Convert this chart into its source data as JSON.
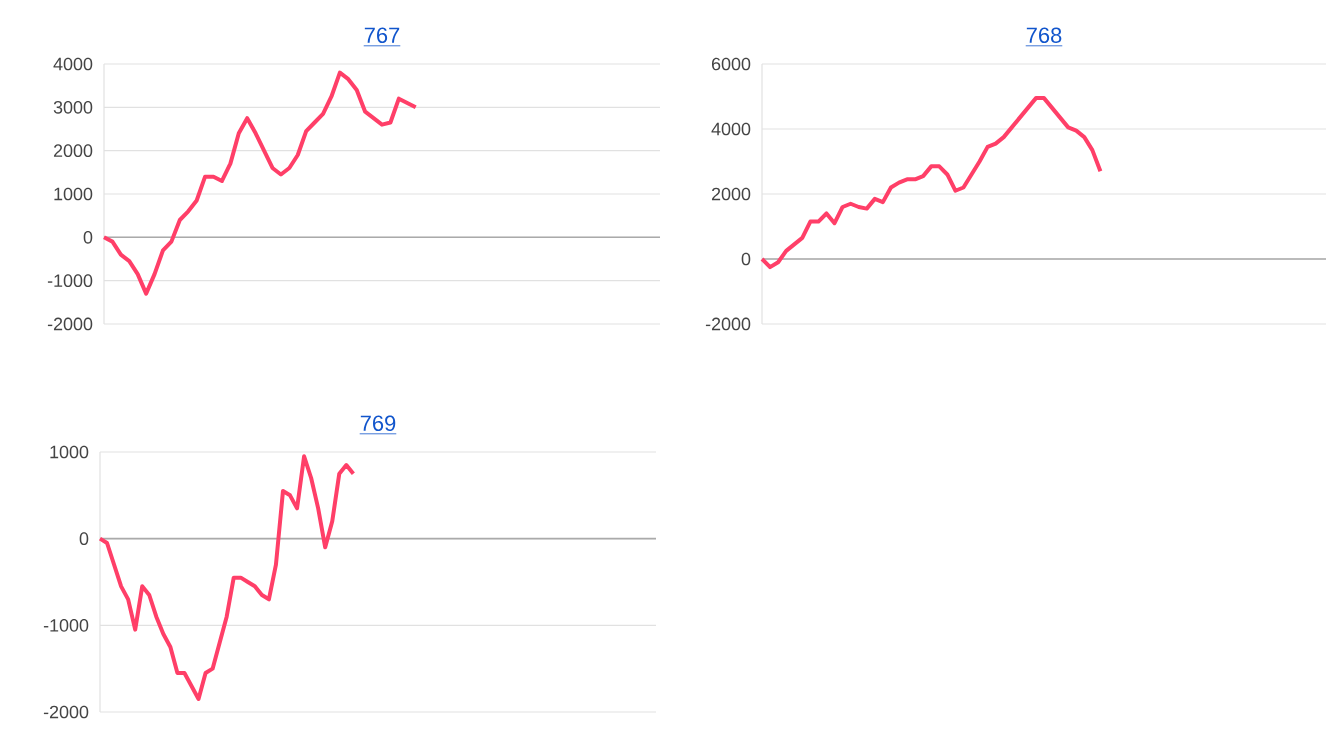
{
  "chart_data": [
    {
      "type": "line",
      "title": "767",
      "categories": [
        null,
        null,
        null,
        null,
        null,
        null,
        null,
        null,
        null,
        null,
        null,
        null,
        null,
        null,
        null,
        null,
        null,
        null,
        null,
        null,
        null,
        null,
        null,
        null,
        null,
        null,
        null,
        null,
        null,
        null,
        null,
        null,
        null,
        null,
        null,
        null,
        null,
        null,
        null,
        null,
        null,
        null,
        null,
        null,
        null,
        null,
        null,
        null,
        null,
        null,
        null,
        null,
        null,
        null,
        null,
        null,
        null,
        null,
        null,
        null,
        null,
        null,
        null,
        null,
        null,
        null,
        null
      ],
      "series": [
        {
          "color": "#ff3f68",
          "values": [
            0,
            -100,
            -400,
            -550,
            -850,
            -1300,
            -850,
            -300,
            -100,
            400,
            600,
            850,
            1400,
            1400,
            1300,
            1700,
            2400,
            2750,
            2400,
            2000,
            1600,
            1450,
            1600,
            1900,
            2450,
            2650,
            2850,
            3250,
            3800,
            3650,
            3400,
            2900,
            2750,
            2600,
            2650,
            3200,
            3100,
            3000,
            null,
            null,
            null,
            null,
            null,
            null,
            null,
            null,
            null,
            null,
            null,
            null,
            null,
            null,
            null,
            null,
            null,
            null,
            null,
            null,
            null,
            null,
            null,
            null,
            null,
            null,
            null,
            null,
            null
          ]
        }
      ],
      "ylim": [
        -2000,
        4000
      ],
      "yticks": [
        -2000,
        -1000,
        0,
        1000,
        2000,
        3000,
        4000
      ],
      "grid": "y",
      "tick_labels": "y",
      "ref_lines": [
        {
          "axis": "y",
          "value": 0,
          "color": "#aaaaaa"
        }
      ]
    },
    {
      "type": "line",
      "title": "768",
      "categories": [
        null,
        null,
        null,
        null,
        null,
        null,
        null,
        null,
        null,
        null,
        null,
        null,
        null,
        null,
        null,
        null,
        null,
        null,
        null,
        null,
        null,
        null,
        null,
        null,
        null,
        null,
        null,
        null,
        null,
        null,
        null,
        null,
        null,
        null,
        null,
        null,
        null,
        null,
        null,
        null,
        null,
        null,
        null,
        null,
        null,
        null,
        null,
        null,
        null,
        null,
        null,
        null,
        null,
        null,
        null,
        null,
        null,
        null,
        null,
        null,
        null,
        null,
        null,
        null,
        null,
        null,
        null,
        null,
        null,
        null,
        null
      ],
      "series": [
        {
          "color": "#ff3f68",
          "values": [
            0,
            -250,
            -100,
            250,
            450,
            650,
            1150,
            1150,
            1400,
            1100,
            1600,
            1700,
            1600,
            1550,
            1850,
            1750,
            2200,
            2350,
            2450,
            2450,
            2550,
            2850,
            2850,
            2600,
            2100,
            2200,
            2600,
            3000,
            3450,
            3550,
            3750,
            4050,
            4350,
            4650,
            4950,
            4950,
            4650,
            4350,
            4050,
            3950,
            3750,
            3350,
            2700,
            null,
            null,
            null,
            null,
            null,
            null,
            null,
            null,
            null,
            null,
            null,
            null,
            null,
            null,
            null,
            null,
            null,
            null,
            null,
            null,
            null,
            null,
            null,
            null,
            null,
            null,
            null,
            null
          ]
        }
      ],
      "ylim": [
        -2000,
        6000
      ],
      "yticks": [
        -2000,
        0,
        2000,
        4000,
        6000
      ],
      "grid": "y",
      "tick_labels": "y",
      "ref_lines": [
        {
          "axis": "y",
          "value": 0,
          "color": "#aaaaaa"
        }
      ]
    },
    {
      "type": "line",
      "title": "769",
      "categories": [
        null,
        null,
        null,
        null,
        null,
        null,
        null,
        null,
        null,
        null,
        null,
        null,
        null,
        null,
        null,
        null,
        null,
        null,
        null,
        null,
        null,
        null,
        null,
        null,
        null,
        null,
        null,
        null,
        null,
        null,
        null,
        null,
        null,
        null,
        null,
        null,
        null,
        null,
        null,
        null,
        null,
        null,
        null,
        null,
        null,
        null,
        null,
        null,
        null,
        null,
        null,
        null,
        null,
        null,
        null,
        null,
        null,
        null,
        null,
        null,
        null,
        null,
        null,
        null,
        null,
        null,
        null,
        null,
        null,
        null,
        null,
        null,
        null,
        null,
        null,
        null,
        null,
        null,
        null,
        null
      ],
      "series": [
        {
          "color": "#ff3f68",
          "values": [
            0,
            -50,
            -300,
            -550,
            -700,
            -1050,
            -550,
            -650,
            -900,
            -1100,
            -1250,
            -1550,
            -1550,
            -1700,
            -1850,
            -1550,
            -1500,
            -1200,
            -900,
            -450,
            -450,
            -500,
            -550,
            -650,
            -700,
            -300,
            550,
            500,
            350,
            950,
            700,
            350,
            -100,
            200,
            750,
            850,
            750,
            null,
            null,
            null,
            null,
            null,
            null,
            null,
            null,
            null,
            null,
            null,
            null,
            null,
            null,
            null,
            null,
            null,
            null,
            null,
            null,
            null,
            null,
            null,
            null,
            null,
            null,
            null,
            null,
            null,
            null,
            null,
            null,
            null,
            null,
            null,
            null,
            null,
            null,
            null,
            null,
            null,
            null,
            null
          ]
        }
      ],
      "ylim": [
        -2000,
        1000
      ],
      "yticks": [
        -2000,
        -1000,
        0,
        1000
      ],
      "grid": "y",
      "tick_labels": "y",
      "ref_lines": [
        {
          "axis": "y",
          "value": 0,
          "color": "#aaaaaa"
        }
      ]
    }
  ]
}
